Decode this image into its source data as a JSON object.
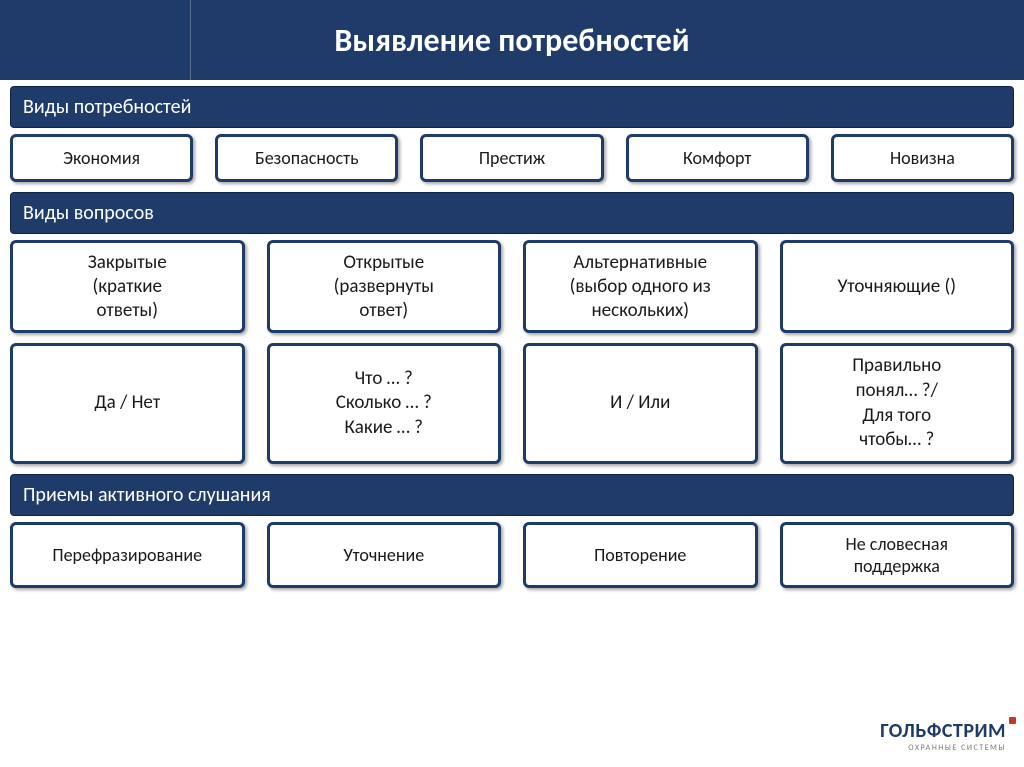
{
  "title": "Выявление потребностей",
  "colors": {
    "header_bg": "#1f3b69",
    "header_text": "#ffffff",
    "box_border": "#1f3b69",
    "box_bg": "#ffffff",
    "box_text": "#1a1a1a",
    "shadow": "rgba(0,0,0,0.35)"
  },
  "section1": {
    "header": "Виды потребностей",
    "items": [
      "Экономия",
      "Безопасность",
      "Престиж",
      "Комфорт",
      "Новизна"
    ]
  },
  "section2": {
    "header": "Виды вопросов",
    "types": [
      "Закрытые\n(краткие\nответы)",
      "Открытые\n(развернуты\nответ)",
      "Альтернативные\n(выбор одного из\nнескольких)",
      "Уточняющие ()"
    ],
    "examples": [
      "Да / Нет",
      "Что … ?\nСколько … ?\nКакие … ?",
      "И / Или",
      "Правильно\nпонял… ?/\nДля того\nчтобы… ?"
    ]
  },
  "section3": {
    "header": "Приемы активного слушания",
    "items": [
      "Перефразирование",
      "Уточнение",
      "Повторение",
      "Не словесная\nподдержка"
    ]
  },
  "footer": {
    "brand": "ГОЛЬФСТРИМ",
    "tagline": "ОХРАННЫЕ СИСТЕМЫ"
  }
}
